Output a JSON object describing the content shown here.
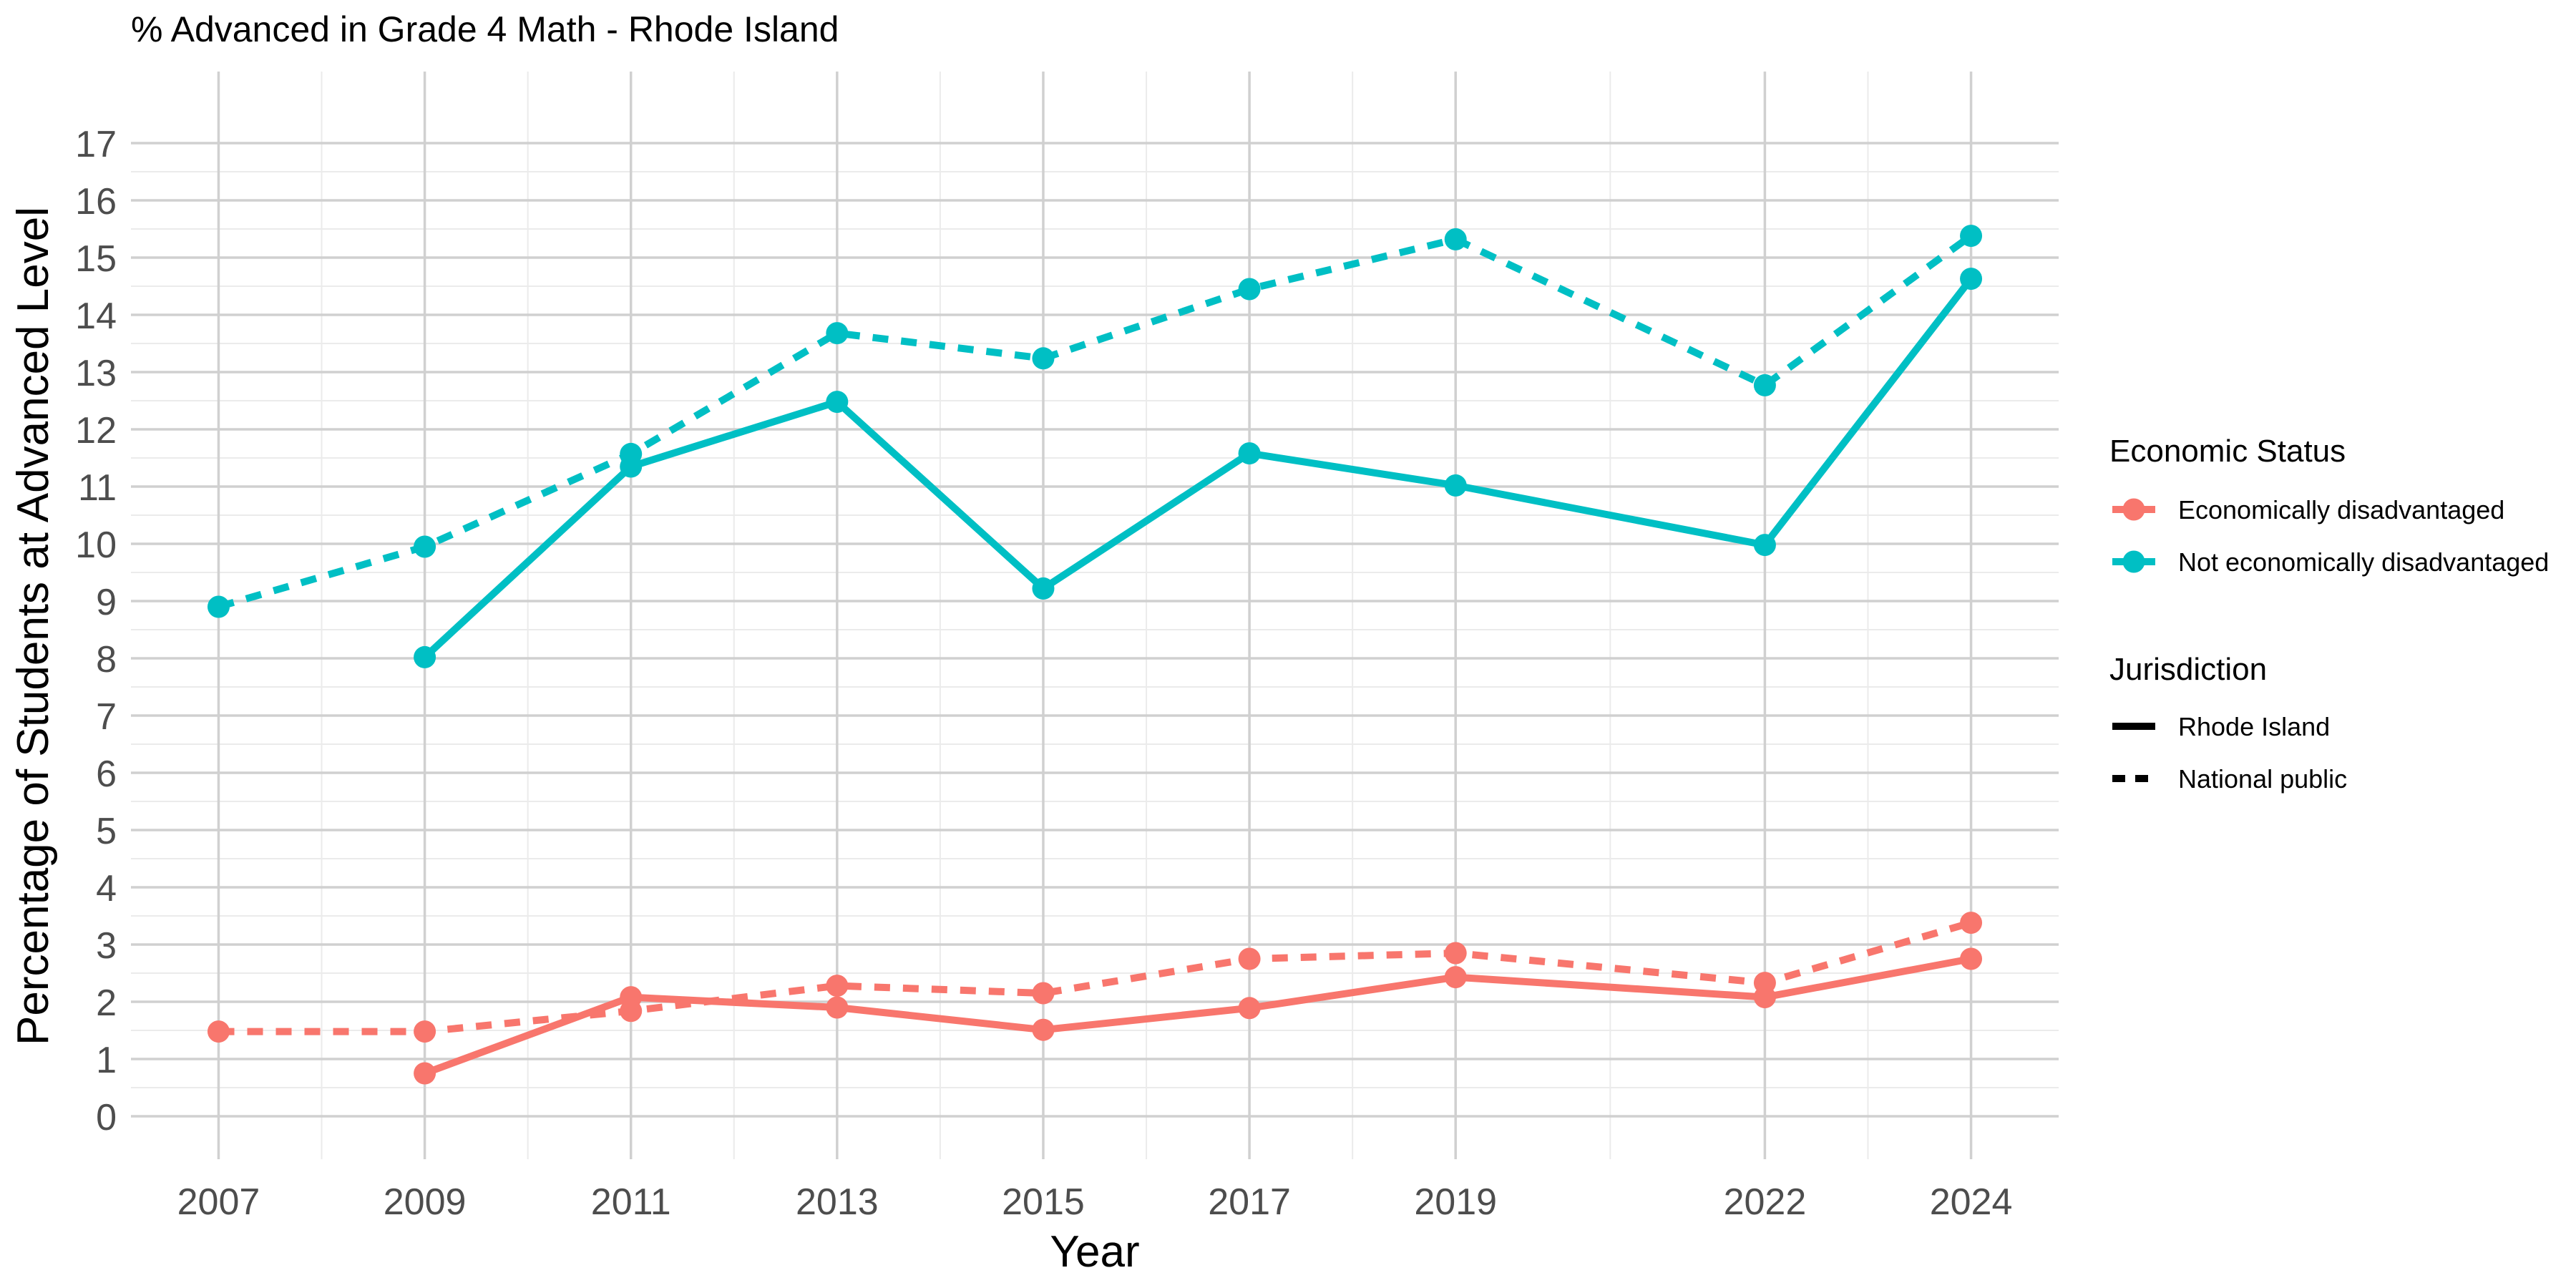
{
  "chart_data": {
    "type": "line",
    "title": "% Advanced in Grade 4 Math - Rhode Island",
    "xlabel": "Year",
    "ylabel": "Percentage of Students at Advanced Level",
    "x": [
      2007,
      2009,
      2011,
      2013,
      2015,
      2017,
      2019,
      2022,
      2024
    ],
    "x_ticks": [
      "2007",
      "2009",
      "2011",
      "2013",
      "2015",
      "2017",
      "2019",
      "2022",
      "2024"
    ],
    "xlim": [
      2006.15,
      2024.85
    ],
    "ylim": [
      -0.75,
      18.25
    ],
    "y_ticks": [
      0,
      1,
      2,
      3,
      4,
      5,
      6,
      7,
      8,
      9,
      10,
      11,
      12,
      13,
      14,
      15,
      16,
      17
    ],
    "grid": true,
    "legend_position": "right",
    "legends": {
      "color": {
        "title": "Economic Status",
        "entries": [
          {
            "label": "Economically disadvantaged",
            "color": "#F8766D"
          },
          {
            "label": "Not economically disadvantaged",
            "color": "#00BFC4"
          }
        ]
      },
      "linetype": {
        "title": "Jurisdiction",
        "entries": [
          {
            "label": "Rhode Island",
            "style": "solid"
          },
          {
            "label": "National public",
            "style": "dashed"
          }
        ]
      }
    },
    "series": [
      {
        "status": "Economically disadvantaged",
        "jurisdiction": "Rhode Island",
        "color": "#F8766D",
        "style": "solid",
        "points": [
          [
            2009,
            0.75
          ],
          [
            2011,
            2.08
          ],
          [
            2013,
            1.9
          ],
          [
            2015,
            1.51
          ],
          [
            2017,
            1.89
          ],
          [
            2019,
            2.43
          ],
          [
            2022,
            2.08
          ],
          [
            2024,
            2.75
          ]
        ]
      },
      {
        "status": "Economically disadvantaged",
        "jurisdiction": "National public",
        "color": "#F8766D",
        "style": "dashed",
        "points": [
          [
            2007,
            1.48
          ],
          [
            2009,
            1.48
          ],
          [
            2011,
            1.84
          ],
          [
            2013,
            2.28
          ],
          [
            2015,
            2.15
          ],
          [
            2017,
            2.75
          ],
          [
            2019,
            2.85
          ],
          [
            2022,
            2.33
          ],
          [
            2024,
            3.38
          ]
        ]
      },
      {
        "status": "Not economically disadvantaged",
        "jurisdiction": "Rhode Island",
        "color": "#00BFC4",
        "style": "solid",
        "points": [
          [
            2009,
            8.02
          ],
          [
            2011,
            11.35
          ],
          [
            2013,
            12.48
          ],
          [
            2015,
            9.22
          ],
          [
            2017,
            11.58
          ],
          [
            2019,
            11.02
          ],
          [
            2022,
            9.98
          ],
          [
            2024,
            14.63
          ]
        ]
      },
      {
        "status": "Not economically disadvantaged",
        "jurisdiction": "National public",
        "color": "#00BFC4",
        "style": "dashed",
        "points": [
          [
            2007,
            8.9
          ],
          [
            2009,
            9.95
          ],
          [
            2011,
            11.57
          ],
          [
            2013,
            13.68
          ],
          [
            2015,
            13.24
          ],
          [
            2017,
            14.45
          ],
          [
            2019,
            15.32
          ],
          [
            2022,
            12.77
          ],
          [
            2024,
            15.38
          ]
        ]
      }
    ]
  }
}
